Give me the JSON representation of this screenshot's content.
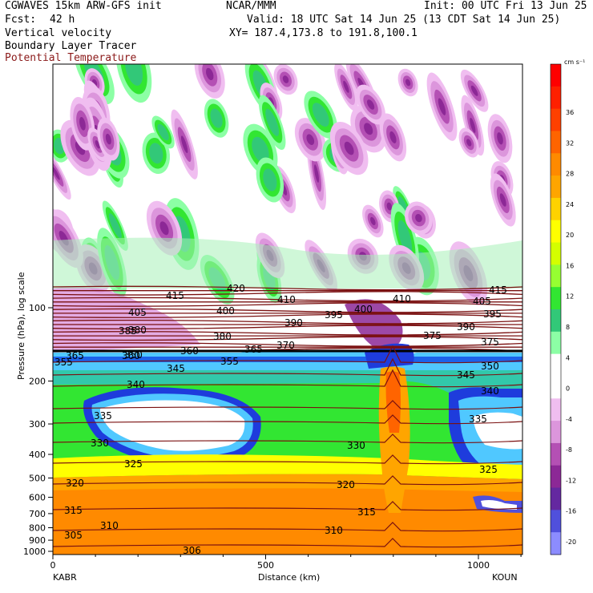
{
  "header": {
    "model": "CGWAVES 15km ARW-GFS init",
    "org": "NCAR/MMM",
    "init": "Init: 00 UTC Fri 13 Jun 25",
    "fcst_label": "Fcst:",
    "fcst_value": "42 h",
    "valid": "Valid: 18 UTC Sat 14 Jun 25 (13 CDT Sat 14 Jun 25)",
    "fields": [
      "Vertical velocity",
      "Boundary Layer Tracer",
      "Potential Temperature"
    ],
    "xy": "XY= 187.4,173.8 to 191.8,100.1"
  },
  "colors": {
    "theta": "#7a1010",
    "title_field3": "#8b1a1a"
  },
  "chart_data": {
    "type": "heatmap",
    "ylabel": "Pressure (hPa), log scale",
    "xlabel": "Distance (km)",
    "left_endpoint": "KABR",
    "right_endpoint": "KOUN",
    "x_ticks": [
      "0",
      "500",
      "1000"
    ],
    "y_ticks": [
      "100",
      "200",
      "300",
      "400",
      "500",
      "600",
      "700",
      "800",
      "900",
      "1000"
    ],
    "colorbar_unit": "cm s⁻¹",
    "colorbar_labels": [
      "36",
      "32",
      "28",
      "24",
      "20",
      "16",
      "12",
      "8",
      "4",
      "0",
      "-4",
      "-8",
      "-12",
      "-16",
      "-20"
    ],
    "colorbar_colors": [
      "#ff0000",
      "#ff2000",
      "#ff4000",
      "#ff6400",
      "#ff8a00",
      "#ffa500",
      "#ffd200",
      "#ffff00",
      "#d4ff00",
      "#96ff32",
      "#32e632",
      "#32c878",
      "#8cffa5",
      "#ffffff",
      "#ffffff",
      "#f0bef0",
      "#dc96dc",
      "#b450b4",
      "#8c2896",
      "#6428a0",
      "#5050dc",
      "#8c8cff"
    ],
    "isentrope_labels": [
      "305",
      "306",
      "310",
      "310",
      "315",
      "315",
      "320",
      "320",
      "325",
      "325",
      "330",
      "330",
      "335",
      "335",
      "340",
      "340",
      "345",
      "345",
      "350",
      "350",
      "355",
      "355",
      "360",
      "360",
      "365",
      "365",
      "370",
      "375",
      "375",
      "380",
      "380",
      "385",
      "390",
      "390",
      "395",
      "395",
      "400",
      "400",
      "405",
      "405",
      "410",
      "410",
      "415",
      "415",
      "420"
    ]
  }
}
